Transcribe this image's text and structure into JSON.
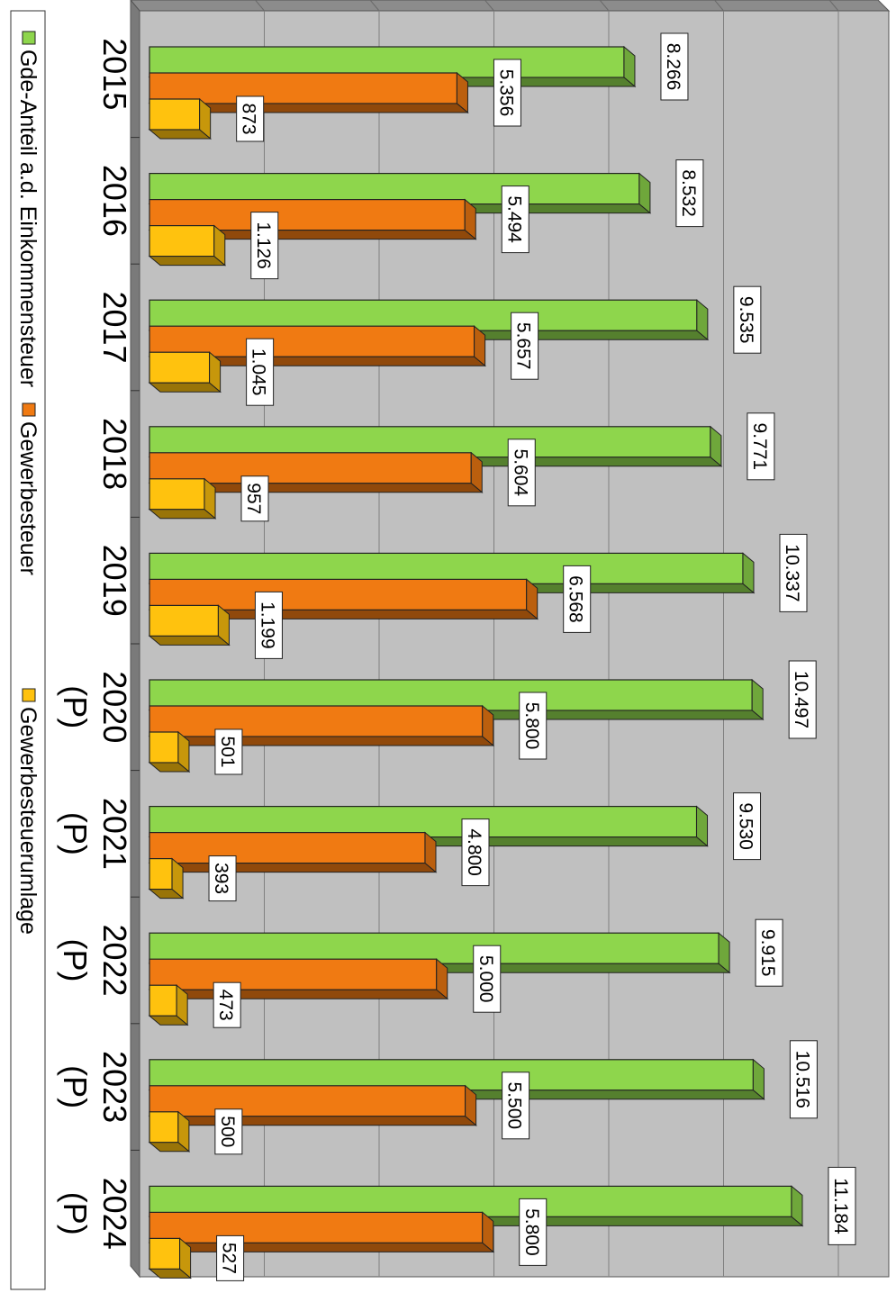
{
  "chart_data": {
    "type": "bar",
    "orientation": "rotated-90-clockwise",
    "three_d": true,
    "categories": [
      [
        "2015"
      ],
      [
        "2016"
      ],
      [
        "2017"
      ],
      [
        "2018"
      ],
      [
        "2019"
      ],
      [
        "2020",
        "(P)"
      ],
      [
        "2021",
        "(P)"
      ],
      [
        "2022",
        "(P)"
      ],
      [
        "2023",
        "(P)"
      ],
      [
        "2024",
        "(P)"
      ]
    ],
    "series": [
      {
        "name": "Gde-Anteil a.d. Einkommensteuer",
        "color": "#8ed64c",
        "values": [
          8266,
          8532,
          9535,
          9771,
          10337,
          10497,
          9530,
          9915,
          10516,
          11184
        ],
        "labels": [
          "8.266",
          "8.532",
          "9.535",
          "9.771",
          "10.337",
          "10.497",
          "9.530",
          "9.915",
          "10.516",
          "11.184"
        ]
      },
      {
        "name": "Gewerbesteuer",
        "color": "#f07a12",
        "values": [
          5356,
          5494,
          5657,
          5604,
          6568,
          5800,
          4800,
          5000,
          5500,
          5800
        ],
        "labels": [
          "5.356",
          "5.494",
          "5.657",
          "5.604",
          "6.568",
          "5.800",
          "4.800",
          "5.000",
          "5.500",
          "5.800"
        ]
      },
      {
        "name": "Gewerbesteuerumlage",
        "color": "#ffc20e",
        "values": [
          873,
          1126,
          1045,
          957,
          1199,
          501,
          393,
          473,
          500,
          527
        ],
        "labels": [
          "873",
          "1.126",
          "1.045",
          "957",
          "1.199",
          "501",
          "393",
          "473",
          "500",
          "527"
        ]
      }
    ],
    "ylim": [
      0,
      12000
    ],
    "grid": true,
    "legend_position": "bottom"
  }
}
